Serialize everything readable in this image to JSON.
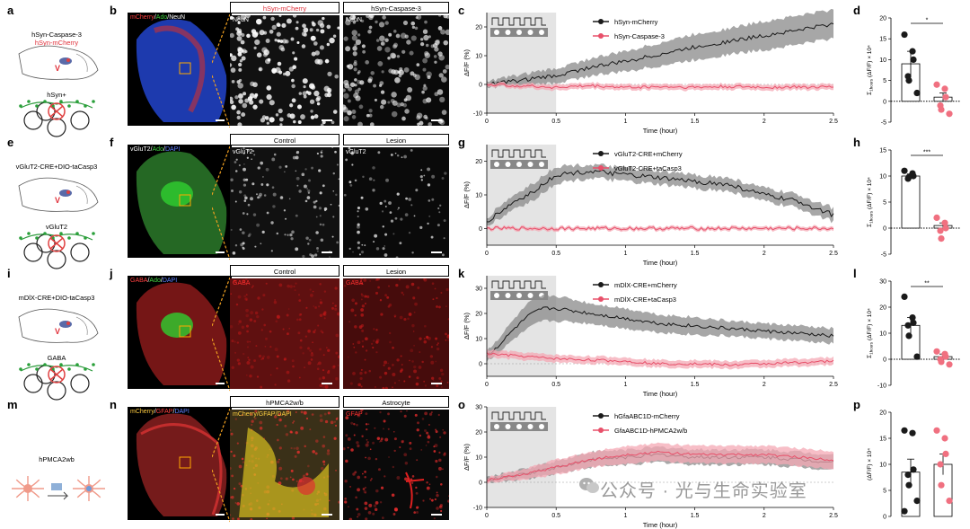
{
  "letters": {
    "a": "a",
    "b": "b",
    "c": "c",
    "d": "d",
    "e": "e",
    "f": "f",
    "g": "g",
    "h": "h",
    "i": "i",
    "j": "j",
    "k": "k",
    "l": "l",
    "m": "m",
    "n": "n",
    "o": "o",
    "p": "p"
  },
  "rows": [
    {
      "schema_line1": "hSyn-Caspase-3",
      "schema_line2": "hSyn-mCherry",
      "cell_label": "hSyn+",
      "overview_label": [
        "mCherry",
        "/",
        "Ado",
        "/",
        "NeuN"
      ],
      "overview_colors": [
        "#ff4040",
        "#ffffff",
        "#40d040",
        "#ffffff",
        "#ffffff"
      ],
      "header_left": "hSyn-mCherry",
      "header_left_color": "#e0303a",
      "header_right": "hSyn-Caspase-3",
      "zoom_left_label": "NeuN",
      "zoom_right_label": "NeuN"
    },
    {
      "schema_line1": "vGluT2-CRE+DIO-taCasp3",
      "schema_line2": "",
      "cell_label": "vGluT2",
      "overview_label": [
        "vGluT2",
        "/",
        "Ado",
        "/",
        "DAPI"
      ],
      "overview_colors": [
        "#ffffff",
        "#ffffff",
        "#40d040",
        "#ffffff",
        "#6080ff"
      ],
      "header_left": "Control",
      "header_left_color": "#000000",
      "header_right": "Lesion",
      "zoom_left_label": "vGluT2",
      "zoom_right_label": "vGluT2"
    },
    {
      "schema_line1": "mDlX-CRE+DIO-taCasp3",
      "schema_line2": "",
      "cell_label": "GABA",
      "overview_label": [
        "GABA",
        "/",
        "Ado",
        "/",
        "DAPI"
      ],
      "overview_colors": [
        "#ff4040",
        "#ffffff",
        "#40d040",
        "#ffffff",
        "#6080ff"
      ],
      "header_left": "Control",
      "header_left_color": "#000000",
      "header_right": "Lesion",
      "zoom_left_label": "GABA",
      "zoom_right_label": "GABA"
    },
    {
      "schema_line1": "",
      "schema_line2": "",
      "cell_label": "hPMCA2wb",
      "overview_label": [
        "mCherry",
        "/",
        "GFAP",
        "/",
        "DAPI"
      ],
      "overview_colors": [
        "#ffcc40",
        "#ffffff",
        "#ff4040",
        "#ffffff",
        "#6080ff"
      ],
      "header_left": "hPMCA2w/b",
      "header_left_color": "#000000",
      "header_right": "Astrocyte",
      "zoom_left_label": "mCherry/GFAP/DAPI",
      "zoom_right_label": "GFAP"
    }
  ],
  "lesion_marker": "V",
  "chart_data": [
    {
      "panel": "c",
      "type": "line",
      "ylabel": "ΔF/F (%)",
      "xlabel": "Time (hour)",
      "ylim": [
        -10,
        25
      ],
      "yticks": [
        -10,
        0,
        10,
        20
      ],
      "xlim": [
        0,
        2.5
      ],
      "xticks": [
        0,
        0.5,
        1,
        1.5,
        2,
        2.5
      ],
      "xticklabels": [
        "0",
        "0.5",
        "1",
        "1.5",
        "2",
        "2.5"
      ],
      "shaded_x": [
        0,
        0.5
      ],
      "series": [
        {
          "name": "hSyn-mCherry",
          "color": "#1a1a1a",
          "band": "#8a8a8a",
          "x": [
            0,
            0.25,
            0.5,
            0.75,
            1,
            1.25,
            1.5,
            1.75,
            2,
            2.25,
            2.5
          ],
          "y": [
            0,
            1.5,
            3,
            6,
            8,
            10.5,
            13,
            15,
            17,
            19,
            21
          ],
          "err": [
            1,
            2,
            2.5,
            3,
            3.5,
            4,
            4.5,
            4.5,
            5,
            5,
            5
          ]
        },
        {
          "name": "hSyn-Caspase-3",
          "color": "#e8506a",
          "band": "#f4a8b4",
          "x": [
            0,
            0.25,
            0.5,
            0.75,
            1,
            1.25,
            1.5,
            1.75,
            2,
            2.25,
            2.5
          ],
          "y": [
            0,
            -0.5,
            -1,
            -0.5,
            -1,
            -0.8,
            -1,
            -0.8,
            -1,
            -0.9,
            -1
          ],
          "err": [
            0.6,
            0.8,
            1,
            1,
            1,
            1,
            1,
            1,
            1,
            1,
            1
          ]
        }
      ]
    },
    {
      "panel": "g",
      "type": "line",
      "ylabel": "ΔF/F (%)",
      "xlabel": "Time (hour)",
      "ylim": [
        -5,
        25
      ],
      "yticks": [
        0,
        10,
        20
      ],
      "xlim": [
        0,
        2.5
      ],
      "xticks": [
        0,
        0.5,
        1,
        1.5,
        2,
        2.5
      ],
      "xticklabels": [
        "0",
        "0.5",
        "1",
        "1.5",
        "2",
        "2.5"
      ],
      "shaded_x": [
        0,
        0.5
      ],
      "series": [
        {
          "name": "vGluT2-CRE+mCherry",
          "color": "#1a1a1a",
          "band": "#8a8a8a",
          "x": [
            0,
            0.1,
            0.2,
            0.3,
            0.4,
            0.5,
            0.75,
            1,
            1.25,
            1.5,
            1.75,
            2,
            2.25,
            2.5
          ],
          "y": [
            2,
            5,
            8,
            10,
            13,
            16,
            17,
            16,
            15,
            14,
            13,
            10,
            8,
            4
          ],
          "err": [
            1,
            2,
            2,
            2.5,
            2.5,
            2.5,
            2,
            2,
            2,
            2,
            2,
            2,
            2,
            2
          ]
        },
        {
          "name": "vGluT2-CRE+taCasp3",
          "color": "#e8506a",
          "band": "#f4a8b4",
          "x": [
            0,
            0.5,
            1,
            1.5,
            2,
            2.5
          ],
          "y": [
            0,
            0,
            0,
            0,
            0,
            0
          ],
          "err": [
            0.5,
            0.6,
            0.6,
            0.6,
            0.6,
            0.6
          ]
        }
      ]
    },
    {
      "panel": "k",
      "type": "line",
      "ylabel": "ΔF/F (%)",
      "xlabel": "Time (hour)",
      "ylim": [
        -5,
        35
      ],
      "yticks": [
        0,
        10,
        20,
        30
      ],
      "xlim": [
        0,
        2.5
      ],
      "xticks": [
        0,
        0.5,
        1,
        1.5,
        2,
        2.5
      ],
      "xticklabels": [
        "0",
        "0.5",
        "1",
        "1.5",
        "2",
        "2.5"
      ],
      "shaded_x": [
        0,
        0.5
      ],
      "series": [
        {
          "name": "mDlX-CRE+mCherry",
          "color": "#1a1a1a",
          "band": "#8a8a8a",
          "x": [
            0,
            0.1,
            0.2,
            0.3,
            0.4,
            0.5,
            0.75,
            1,
            1.25,
            1.5,
            1.75,
            2,
            2.25,
            2.5
          ],
          "y": [
            3,
            8,
            14,
            19,
            22,
            22,
            20,
            18,
            16,
            15,
            14,
            13,
            12,
            11
          ],
          "err": [
            2,
            3,
            4,
            5,
            5,
            5,
            4,
            4,
            3.5,
            3.5,
            3,
            3,
            3,
            3
          ]
        },
        {
          "name": "mDlX-CRE+taCasp3",
          "color": "#e8506a",
          "band": "#f4a8b4",
          "x": [
            0,
            0.25,
            0.5,
            0.75,
            1,
            1.25,
            1.5,
            1.75,
            2,
            2.25,
            2.5
          ],
          "y": [
            4,
            3,
            2,
            1.5,
            1,
            0,
            0,
            -0.5,
            0,
            0.5,
            1
          ],
          "err": [
            1.5,
            1.5,
            1.5,
            1.5,
            1.5,
            1.5,
            1.5,
            1.5,
            1.5,
            1.5,
            1.5
          ]
        }
      ]
    },
    {
      "panel": "o",
      "type": "line",
      "ylabel": "ΔF/F (%)",
      "xlabel": "Time (hour)",
      "ylim": [
        -10,
        30
      ],
      "yticks": [
        -10,
        0,
        10,
        20,
        30
      ],
      "xlim": [
        0,
        2.5
      ],
      "xticks": [
        0,
        0.5,
        1,
        1.5,
        2,
        2.5
      ],
      "xticklabels": [
        "0",
        "0.5",
        "1",
        "1.5",
        "2",
        "2.5"
      ],
      "shaded_x": [
        0,
        0.5
      ],
      "series": [
        {
          "name": "hGfaABC1D-mCherry",
          "color": "#1a1a1a",
          "band": "#8a8a8a",
          "x": [
            0,
            0.25,
            0.5,
            0.75,
            1,
            1.25,
            1.5,
            1.75,
            2,
            2.25,
            2.5
          ],
          "y": [
            1,
            3,
            6,
            9,
            10,
            11,
            10,
            10,
            10,
            9,
            8
          ],
          "err": [
            1,
            2,
            2.5,
            3,
            3,
            3,
            3,
            3,
            3,
            3,
            3
          ]
        },
        {
          "name": "GfaABC1D-hPMCA2w/b",
          "color": "#e8506a",
          "band": "#f4a8b4",
          "x": [
            0,
            0.25,
            0.5,
            0.75,
            1,
            1.25,
            1.5,
            1.75,
            2,
            2.25,
            2.5
          ],
          "y": [
            1,
            3,
            6,
            9,
            11,
            12,
            11,
            11,
            11,
            10,
            9
          ],
          "err": [
            1,
            2,
            3,
            3,
            3.5,
            3.5,
            3.5,
            3.5,
            3.5,
            3.5,
            3.5
          ]
        }
      ]
    },
    {
      "panel": "d",
      "type": "bar",
      "ylabel": "(ΔF/F) × 10⁴",
      "ylabel_prefix": "Σ",
      "ylabel_sub": "1hours",
      "ylim": [
        -5,
        20
      ],
      "yticks": [
        -5,
        0,
        5,
        10,
        15,
        20
      ],
      "significance": "*",
      "series": [
        {
          "name": "hSyn-mCherry",
          "color": "#1a1a1a",
          "mean": 9,
          "sem": 3,
          "points": [
            16,
            12,
            10,
            6,
            5,
            2
          ]
        },
        {
          "name": "hSyn-Caspase-3",
          "color": "#f07080",
          "mean": 1,
          "sem": 1,
          "points": [
            4,
            3,
            1,
            -1,
            -2,
            -3
          ]
        }
      ]
    },
    {
      "panel": "h",
      "type": "bar",
      "ylabel": "(ΔF/F) × 10⁴",
      "ylabel_prefix": "Σ",
      "ylabel_sub": "1hours",
      "ylim": [
        -5,
        15
      ],
      "yticks": [
        -5,
        0,
        5,
        10,
        15
      ],
      "significance": "***",
      "series": [
        {
          "name": "vGluT2-CRE+mCherry",
          "color": "#1a1a1a",
          "mean": 10,
          "sem": 0.4,
          "points": [
            11,
            10.5,
            10,
            9.5,
            9.8
          ]
        },
        {
          "name": "vGluT2-CRE+taCasp3",
          "color": "#f07080",
          "mean": 0.5,
          "sem": 0.5,
          "points": [
            2,
            1,
            0,
            -0.5,
            -2
          ]
        }
      ]
    },
    {
      "panel": "l",
      "type": "bar",
      "ylabel": "(ΔF/F) × 10⁴",
      "ylabel_prefix": "Σ",
      "ylabel_sub": "1hours",
      "ylim": [
        -10,
        30
      ],
      "yticks": [
        -10,
        0,
        10,
        20,
        30
      ],
      "significance": "**",
      "series": [
        {
          "name": "mDlX-CRE+mCherry",
          "color": "#1a1a1a",
          "mean": 13,
          "sem": 3,
          "points": [
            24,
            16,
            14,
            13,
            9,
            1
          ]
        },
        {
          "name": "mDlX-CRE+taCasp3",
          "color": "#f07080",
          "mean": 1,
          "sem": 1,
          "points": [
            3,
            2,
            1,
            0,
            -1,
            -2
          ]
        }
      ]
    },
    {
      "panel": "p",
      "type": "bar",
      "ylabel": "(ΔF/F) × 10⁴",
      "ylim": [
        0,
        20
      ],
      "yticks": [
        0,
        5,
        10,
        15,
        20
      ],
      "significance": "",
      "series": [
        {
          "name": "hGfaABC1D-mCherry",
          "color": "#1a1a1a",
          "mean": 8.5,
          "sem": 2.5,
          "points": [
            16.5,
            16,
            9,
            8,
            6,
            3,
            1
          ]
        },
        {
          "name": "GfaABC1D-hPMCA2w/b",
          "color": "#f07080",
          "mean": 10,
          "sem": 2,
          "points": [
            16.5,
            15,
            12,
            10,
            6,
            3
          ]
        }
      ]
    }
  ],
  "watermark": "公众号 · 光与生命实验室"
}
